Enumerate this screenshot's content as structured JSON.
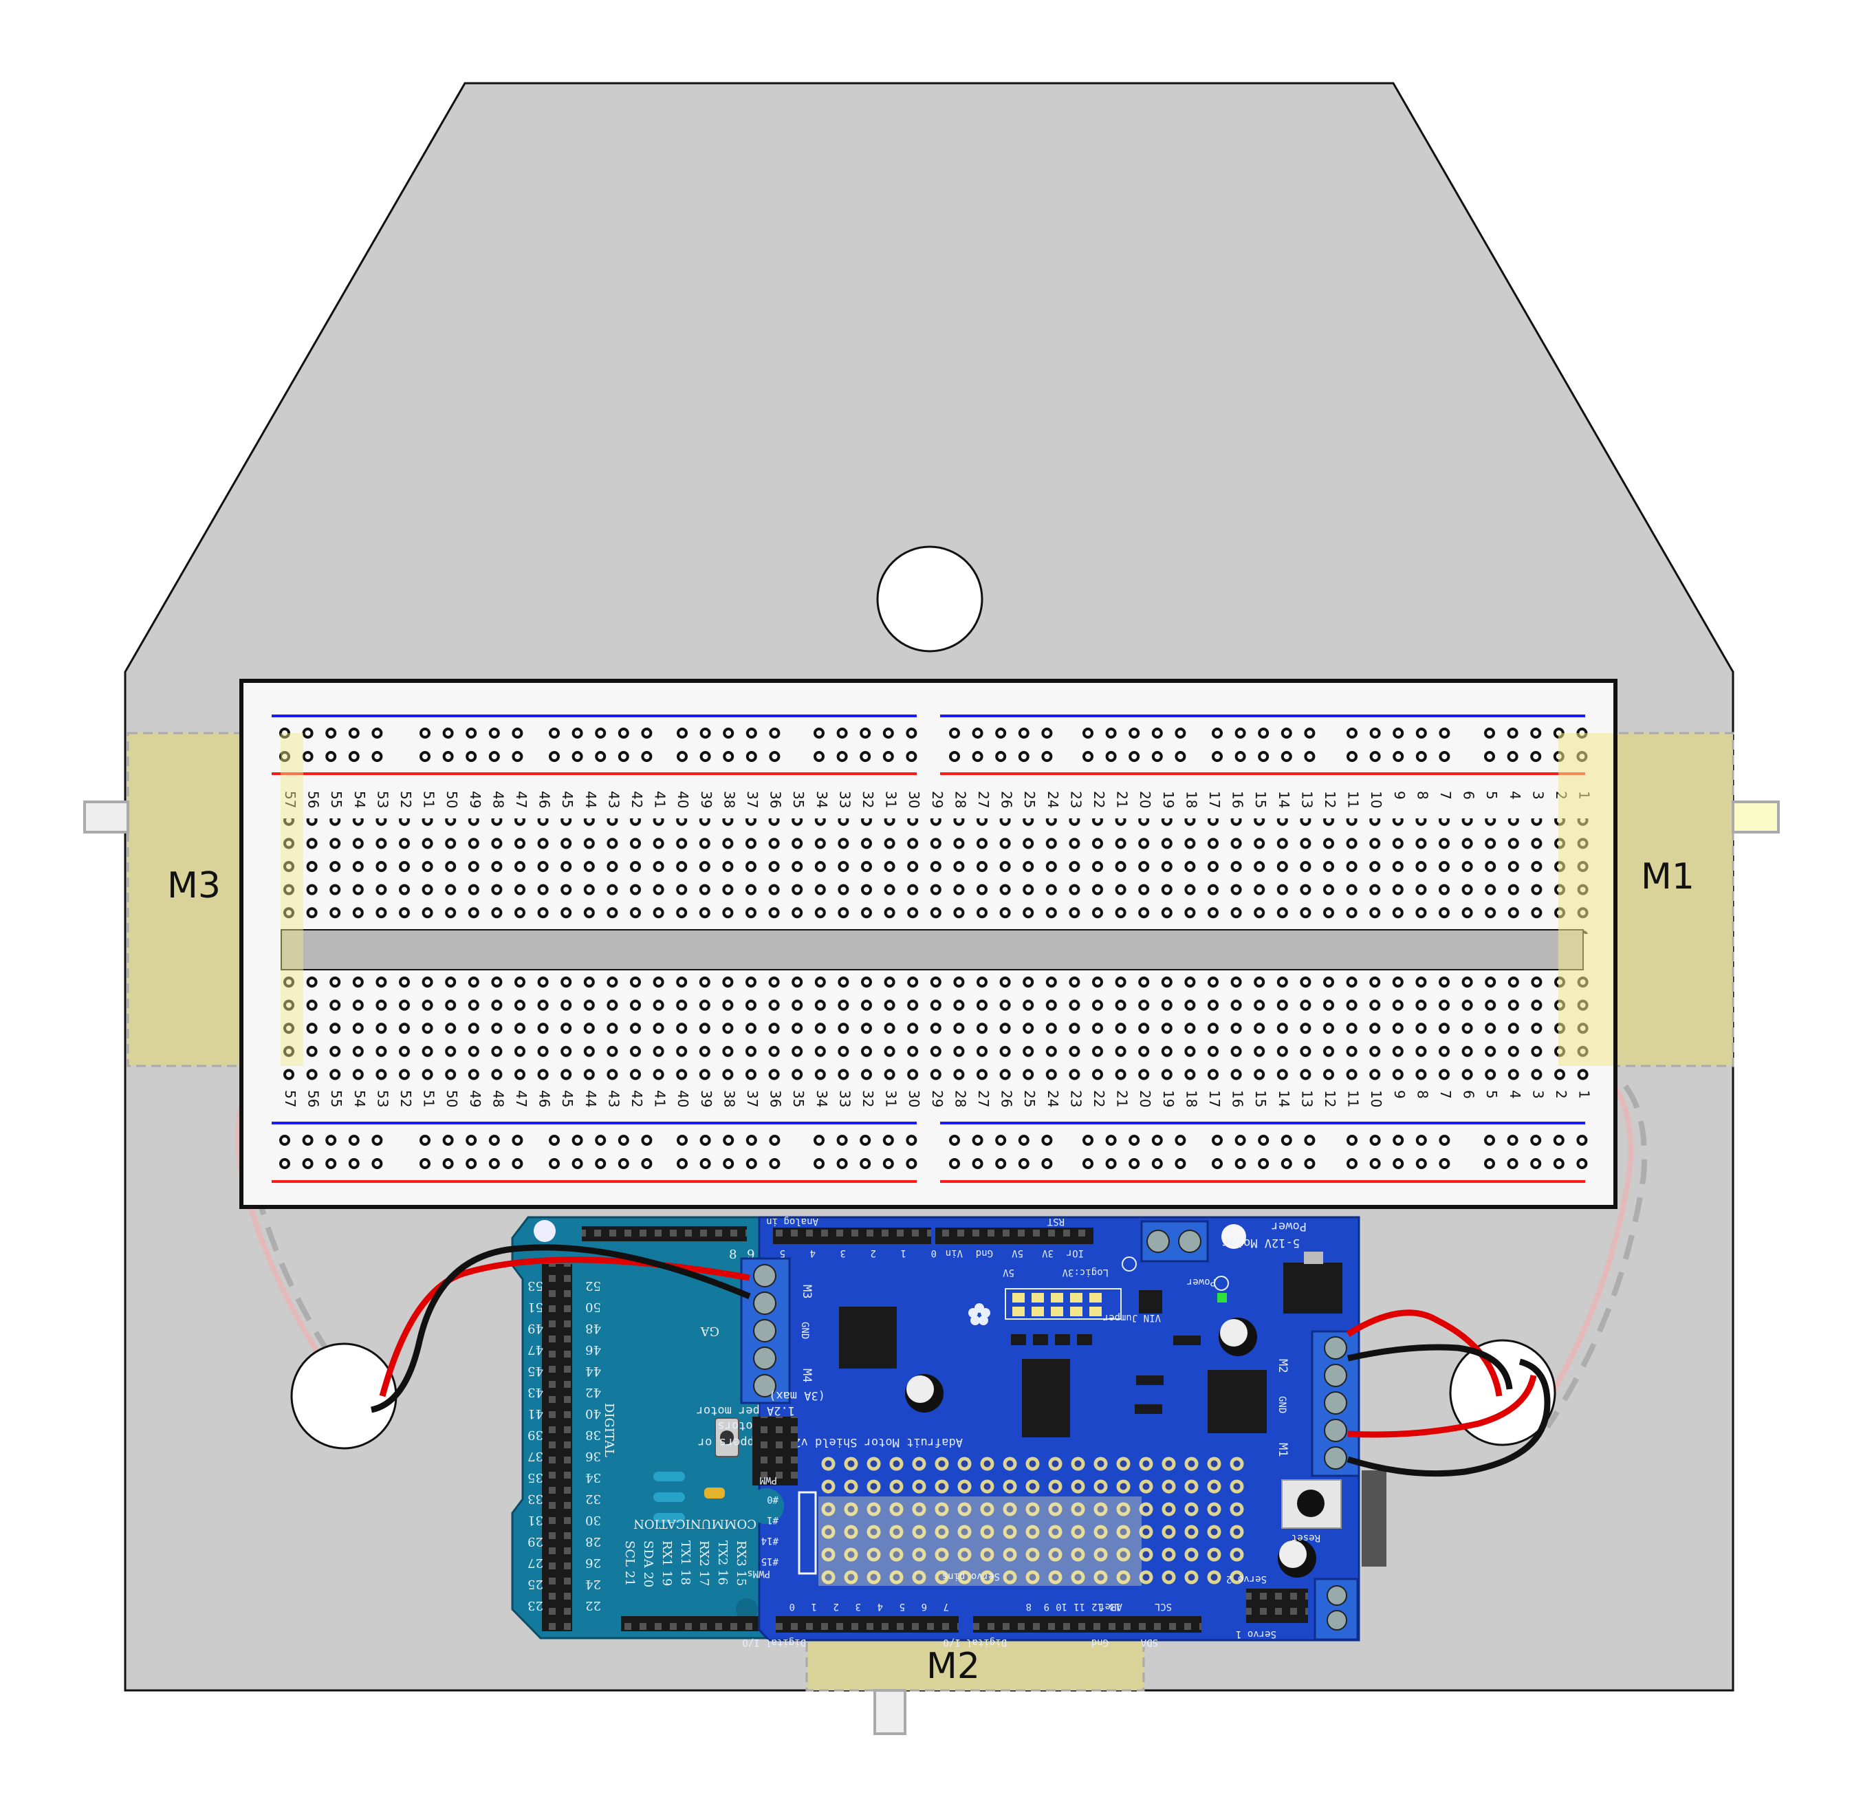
{
  "motors": {
    "m1_label": "M1",
    "m2_label": "M2",
    "m3_label": "M3"
  },
  "breadboard": {
    "columns_left_to_right": [
      "57",
      "56",
      "55",
      "54",
      "53",
      "52",
      "51",
      "50",
      "49",
      "48",
      "47",
      "46",
      "45",
      "44",
      "43",
      "42",
      "41",
      "40",
      "39",
      "38",
      "37",
      "36",
      "35",
      "34",
      "33",
      "32",
      "31",
      "30",
      "29",
      "28",
      "27",
      "26",
      "25",
      "24",
      "23",
      "22",
      "21",
      "20",
      "19",
      "18",
      "17",
      "16",
      "15",
      "14",
      "13",
      "12",
      "11",
      "10",
      "9",
      "8",
      "7",
      "6",
      "5",
      "4",
      "3",
      "2",
      "1"
    ],
    "rail_top_color": "#1a1aff",
    "rail_bottom_color": "#ff1a1a"
  },
  "motor_shield": {
    "title": "Adafruit Motor Shield v2.3",
    "lines": [
      "2 steppers or",
      "4 DC motors",
      "1.2A per motor",
      "(3A max)"
    ],
    "power_label": "Power",
    "power_range": "5-12V Motor",
    "gnd_label": "GND",
    "m1": "M1",
    "m2": "M2",
    "m3": "M3",
    "m4": "M4",
    "reset_label": "Reset",
    "servo1_label": "Servo 1",
    "servo2_label": "Servo 2",
    "servo_pins_label": "Servo pins",
    "analog_in_label": "Analog in",
    "rst_label": "RST",
    "power_header": [
      "Vin",
      "Gnd",
      "5V",
      "3V",
      "IOr"
    ],
    "analog_nums": [
      "5",
      "4",
      "3",
      "2",
      "1",
      "0"
    ],
    "digital_io_label": "Digital I/O",
    "digital_nums_right": [
      "13",
      "12",
      "11",
      "10",
      "9",
      "8"
    ],
    "digital_nums_left": [
      "7",
      "6",
      "5",
      "4",
      "3",
      "2",
      "1",
      "0"
    ],
    "aref_label": "ARef",
    "gnd_bottom": "Gnd",
    "sda_label": "SDA",
    "scl_label": "SCL",
    "pwm_label": "PWM",
    "pwm_pins": [
      "#0",
      "#1",
      "#14",
      "#15"
    ],
    "logic_label": "Logic:3V",
    "fivev_label": "5V",
    "vin_jumper": "VIN Jumper",
    "power_led": "Power",
    "pcb_color": "#1c47c9"
  },
  "arduino": {
    "digital_label": "DIGITAL",
    "communication_label": "COMMUNICATION",
    "pin_left": [
      "53",
      "51",
      "49",
      "47",
      "45",
      "43",
      "41",
      "39",
      "37",
      "35",
      "33",
      "31",
      "29",
      "27",
      "25",
      "23"
    ],
    "pin_right": [
      "52",
      "50",
      "48",
      "46",
      "44",
      "42",
      "40",
      "38",
      "36",
      "34",
      "32",
      "30",
      "28",
      "26",
      "24",
      "22"
    ],
    "comm_left": [
      "SCL 21",
      "SDA 20",
      "RX1 19",
      "TX1 18",
      "RX2 17",
      "TX2 16",
      "RX3 15"
    ],
    "header_nums": [
      "9",
      "8"
    ],
    "ga_label": "GA",
    "pcb_color": "#137a9e"
  }
}
